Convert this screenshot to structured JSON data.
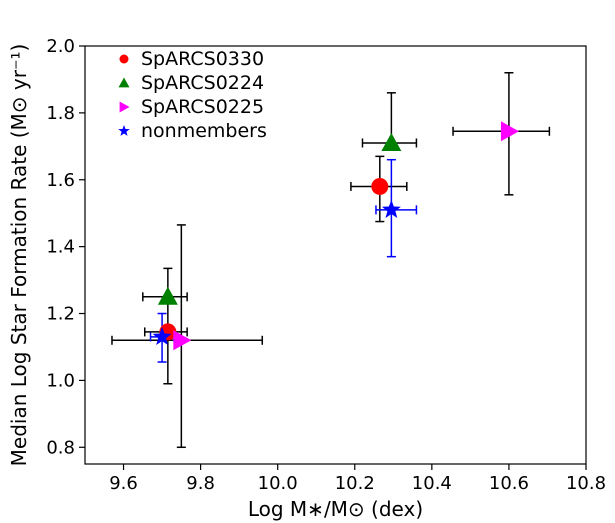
{
  "chart_data": {
    "type": "scatter",
    "xlabel": "Log M∗/M⊙ (dex)",
    "ylabel": "Median Log Star Formation Rate (M⊙ yr⁻¹)",
    "xlim": [
      9.5,
      10.8
    ],
    "ylim": [
      0.75,
      2.0
    ],
    "x_ticks": [
      "9.6",
      "9.8",
      "10.0",
      "10.2",
      "10.4",
      "10.6",
      "10.8"
    ],
    "y_ticks": [
      "0.8",
      "1.0",
      "1.2",
      "1.4",
      "1.6",
      "1.8",
      "2.0"
    ],
    "grid": false,
    "legend_position": "top-left",
    "series": [
      {
        "name": "SpARCS0330",
        "marker": "circle",
        "color": "#ff0000",
        "errorbar_color": "#000000",
        "points": [
          {
            "x": 9.715,
            "y": 1.145,
            "xerr": [
              0.06,
              0.05
            ],
            "yerr": [
              0.155,
              0.105
            ]
          },
          {
            "x": 10.265,
            "y": 1.58,
            "xerr": [
              0.075,
              0.07
            ],
            "yerr": [
              0.105,
              0.09
            ]
          }
        ]
      },
      {
        "name": "SpARCS0224",
        "marker": "triangle-up",
        "color": "#008000",
        "errorbar_color": "#000000",
        "points": [
          {
            "x": 9.715,
            "y": 1.25,
            "xerr": [
              0.065,
              0.05
            ],
            "yerr": [
              0.0,
              0.085
            ]
          },
          {
            "x": 10.295,
            "y": 1.71,
            "xerr": [
              0.075,
              0.065
            ],
            "yerr": [
              0.0,
              0.15
            ]
          }
        ]
      },
      {
        "name": "SpARCS0225",
        "marker": "triangle-right",
        "color": "#ff00ff",
        "errorbar_color": "#000000",
        "points": [
          {
            "x": 9.75,
            "y": 1.12,
            "xerr": [
              0.18,
              0.21
            ],
            "yerr": [
              0.32,
              0.345
            ]
          },
          {
            "x": 10.6,
            "y": 1.745,
            "xerr": [
              0.145,
              0.105
            ],
            "yerr": [
              0.19,
              0.175
            ]
          }
        ]
      },
      {
        "name": "nonmembers",
        "marker": "star",
        "color": "#0000ff",
        "errorbar_color": "#0000ff",
        "points": [
          {
            "x": 9.7,
            "y": 1.13,
            "xerr": [
              0.03,
              0.03
            ],
            "yerr": [
              0.075,
              0.07
            ]
          },
          {
            "x": 10.295,
            "y": 1.51,
            "xerr": [
              0.04,
              0.065
            ],
            "yerr": [
              0.14,
              0.15
            ]
          }
        ]
      }
    ]
  }
}
